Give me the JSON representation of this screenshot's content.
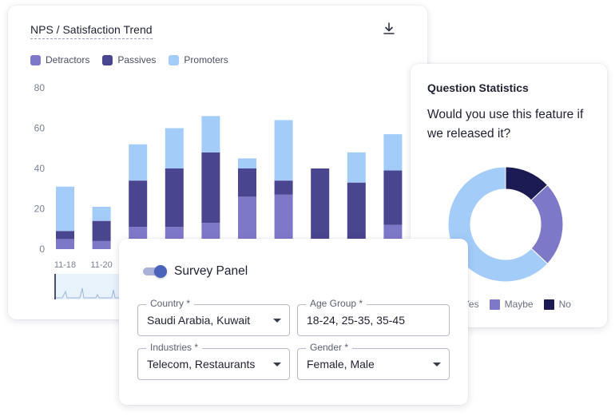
{
  "nps_card": {
    "title": "NPS / Satisfaction Trend",
    "download_icon": "download-icon"
  },
  "chart_data": {
    "type": "bar",
    "stacked": true,
    "categories": [
      "11-18",
      "11-20",
      "",
      "",
      "",
      "",
      "",
      "",
      "",
      ""
    ],
    "series": [
      {
        "name": "Detractors",
        "color": "#7e78c9",
        "values": [
          5,
          4,
          11,
          11,
          13,
          26,
          27,
          3,
          3,
          12
        ]
      },
      {
        "name": "Passives",
        "color": "#4a458f",
        "values": [
          4,
          10,
          23,
          29,
          35,
          14,
          7,
          37,
          30,
          27
        ]
      },
      {
        "name": "Promoters",
        "color": "#a4ccf8",
        "values": [
          22,
          7,
          18,
          20,
          18,
          5,
          30,
          0,
          15,
          18
        ]
      }
    ],
    "y_ticks": [
      "80",
      "60",
      "40",
      "20",
      "0"
    ],
    "ylim": [
      0,
      80
    ],
    "legend_position": "top-left",
    "grid": false
  },
  "question_card": {
    "title": "Question Statistics",
    "question": "Would you use this feature if we released it?",
    "donut": [
      {
        "label": "Yes",
        "value": 63,
        "color": "#a4ccf8"
      },
      {
        "label": "Maybe",
        "value": 24,
        "color": "#7e78c9"
      },
      {
        "label": "No",
        "value": 13,
        "color": "#1b1a52"
      }
    ]
  },
  "survey_panel": {
    "title": "Survey Panel",
    "toggle_on": true,
    "fields": {
      "country": {
        "label": "Country *",
        "value": "Saudi Arabia, Kuwait"
      },
      "age_group": {
        "label": "Age Group *",
        "value": "18-24, 25-35, 35-45"
      },
      "industries": {
        "label": "Industries *",
        "value": "Telecom, Restaurants"
      },
      "gender": {
        "label": "Gender *",
        "value": "Female, Male"
      }
    }
  }
}
